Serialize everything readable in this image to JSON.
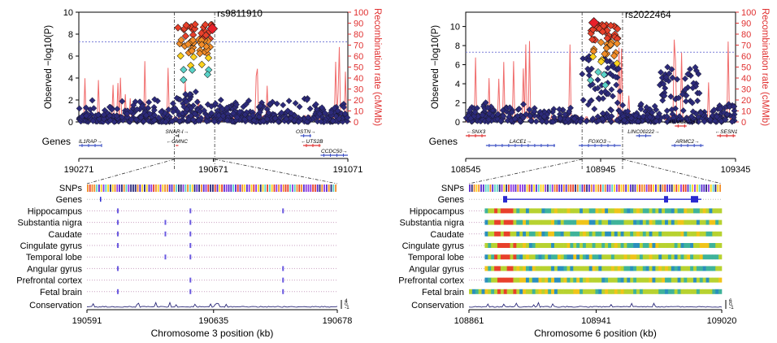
{
  "chart_data": [
    {
      "type": "scatter",
      "title": "",
      "lead_snp": "rs9811910",
      "ylabel_left": "Observed −log10(P)",
      "ylabel_right": "Recombination rate (cM/Mb)",
      "ylim_left": [
        0,
        10
      ],
      "ylim_right": [
        0,
        100
      ],
      "yticks_left": [
        "0",
        "2",
        "4",
        "6",
        "8",
        "10"
      ],
      "yticks_right": [
        "0",
        "10",
        "20",
        "30",
        "40",
        "50",
        "60",
        "70",
        "80",
        "90",
        "100"
      ],
      "xlim": [
        190271,
        191071
      ],
      "xticks": [
        "190271",
        "190671",
        "191071"
      ],
      "threshold": 7.3,
      "genes_label": "Genes",
      "genes": [
        {
          "name": "IL1RAP",
          "start": 190271,
          "end": 190340,
          "strand": "+",
          "row": 1,
          "color": "#3b4fc4"
        },
        {
          "name": "SNAR-I",
          "start": 190558,
          "end": 190568,
          "strand": "+",
          "row": 0,
          "color": "#333333"
        },
        {
          "name": "GMNC",
          "start": 190559,
          "end": 190567,
          "strand": "-",
          "row": 1,
          "color": "#e03030"
        },
        {
          "name": "OSTN",
          "start": 190930,
          "end": 190962,
          "strand": "+",
          "row": 0,
          "color": "#3b4fc4"
        },
        {
          "name": "UTS2B",
          "start": 190938,
          "end": 190990,
          "strand": "-",
          "row": 1,
          "color": "#e03030"
        },
        {
          "name": "CCDC50",
          "start": 190990,
          "end": 191071,
          "strand": "+",
          "row": 2,
          "color": "#3b4fc4"
        }
      ],
      "track_title": {
        "SNPs": "SNPs",
        "Genes": "Genes"
      },
      "tracks": [
        "Hippocampus",
        "Substantia nigra",
        "Caudate",
        "Cingulate gyrus",
        "Temporal lobe",
        "Angular gyrus",
        "Prefrontal cortex",
        "Fetal brain"
      ],
      "conservation_label": "Conservation",
      "conservation_ticks": [
        "4",
        "0",
        "-1"
      ],
      "zoom_xlim": [
        190591,
        190678
      ],
      "zoom_xticks": [
        "190591",
        "190635",
        "190678"
      ],
      "xlabel": "Chromosome 3 position (kb)"
    },
    {
      "type": "scatter",
      "title": "",
      "lead_snp": "rs2022464",
      "ylabel_left": "Observed −log10(P)",
      "ylabel_right": "Recombination rate (cM/Mb)",
      "ylim_left": [
        0,
        11.5
      ],
      "ylim_right": [
        0,
        100
      ],
      "yticks_left": [
        "0",
        "2",
        "4",
        "6",
        "8",
        "10"
      ],
      "yticks_right": [
        "0",
        "10",
        "20",
        "30",
        "40",
        "50",
        "60",
        "70",
        "80",
        "90",
        "100"
      ],
      "xlim": [
        108545,
        109345
      ],
      "xticks": [
        "108545",
        "108945",
        "109345"
      ],
      "threshold": 7.3,
      "genes_label": "Genes",
      "genes": [
        {
          "name": "SNX3",
          "start": 108545,
          "end": 108605,
          "strand": "-",
          "row": 0,
          "color": "#e03030"
        },
        {
          "name": "LACE1",
          "start": 108605,
          "end": 108810,
          "strand": "+",
          "row": 1,
          "color": "#3b4fc4"
        },
        {
          "name": "FOXO3",
          "start": 108880,
          "end": 109005,
          "strand": "+",
          "row": 1,
          "color": "#3b4fc4"
        },
        {
          "name": "LINC00222",
          "start": 109050,
          "end": 109095,
          "strand": "+",
          "row": 0,
          "color": "#3b4fc4"
        },
        {
          "name": "ARMC2-AS1",
          "start": 109165,
          "end": 109200,
          "strand": "-",
          "row": -1,
          "color": "#e03030"
        },
        {
          "name": "ARMC2",
          "start": 109155,
          "end": 109250,
          "strand": "+",
          "row": 1,
          "color": "#3b4fc4"
        },
        {
          "name": "SESN1",
          "start": 109290,
          "end": 109345,
          "strand": "-",
          "row": 0,
          "color": "#e03030"
        }
      ],
      "track_title": {
        "SNPs": "SNPs",
        "Genes": "Genes"
      },
      "tracks": [
        "Hippocampus",
        "Substantia nigra",
        "Caudate",
        "Cingulate gyrus",
        "Temporal lobe",
        "Angular gyrus",
        "Prefrontal cortex",
        "Fetal brain"
      ],
      "conservation_label": "Conservation",
      "conservation_ticks": [
        "6",
        "0",
        "-1"
      ],
      "zoom_xlim": [
        108861,
        109020
      ],
      "zoom_xticks": [
        "108861",
        "108941",
        "109020"
      ],
      "xlabel": "Chromosome 6 position (kb)"
    }
  ]
}
